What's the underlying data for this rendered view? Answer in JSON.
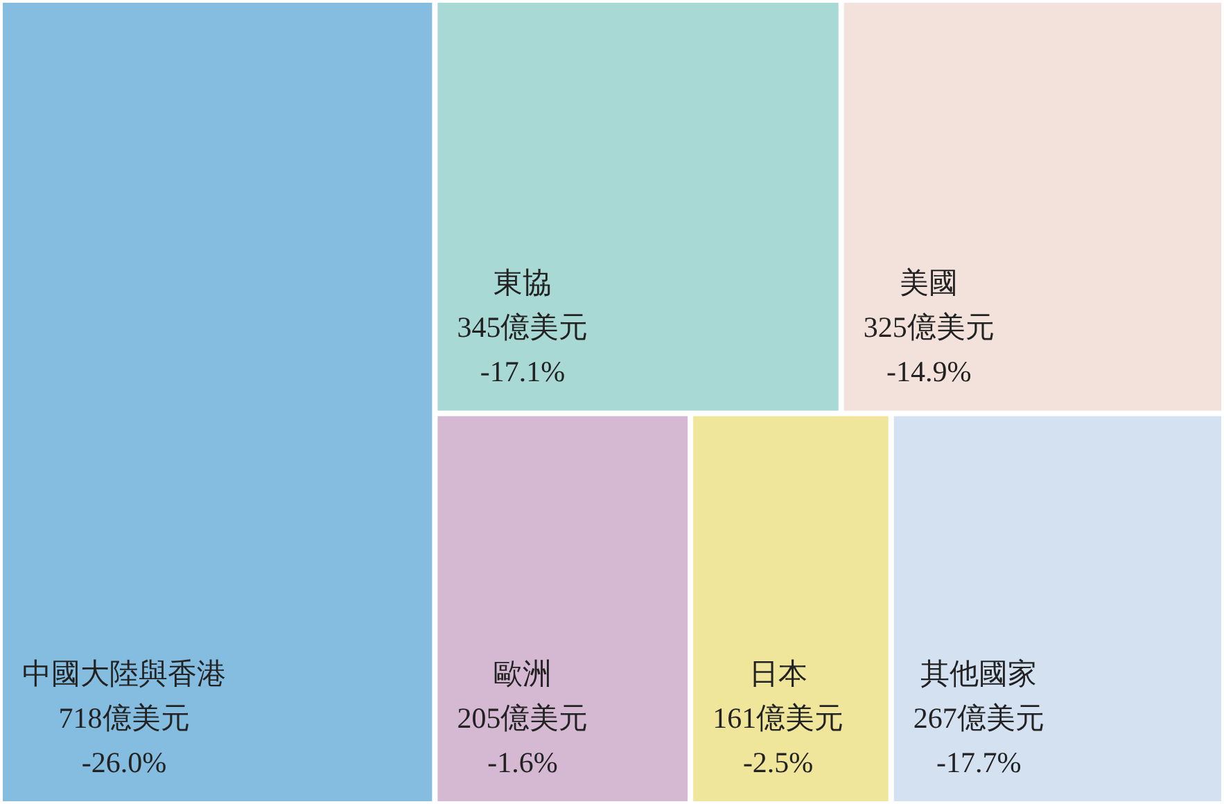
{
  "chart_data": {
    "type": "other",
    "categories": [
      "中國大陸與香港",
      "東協",
      "美國",
      "歐洲",
      "日本",
      "其他國家"
    ],
    "series": [
      {
        "colors": [
          "#85bde0",
          "#a9d9d5",
          "#f3e2dc",
          "#d5b9d3",
          "#efe69c",
          "#d3e1f1"
        ],
        "values": [
          718,
          345,
          325,
          205,
          161,
          267
        ],
        "value_labels": [
          "718億美元",
          "345億美元",
          "325億美元",
          "205億美元",
          "161億美元",
          "267億美元"
        ]
      },
      {
        "values": [
          -26.0,
          -17.1,
          -14.9,
          -1.6,
          -2.5,
          -17.7
        ],
        "value_labels": [
          "-26.0%",
          "-17.1%",
          "-14.9%",
          "-1.6%",
          "-2.5%",
          "-17.7%"
        ]
      }
    ]
  }
}
